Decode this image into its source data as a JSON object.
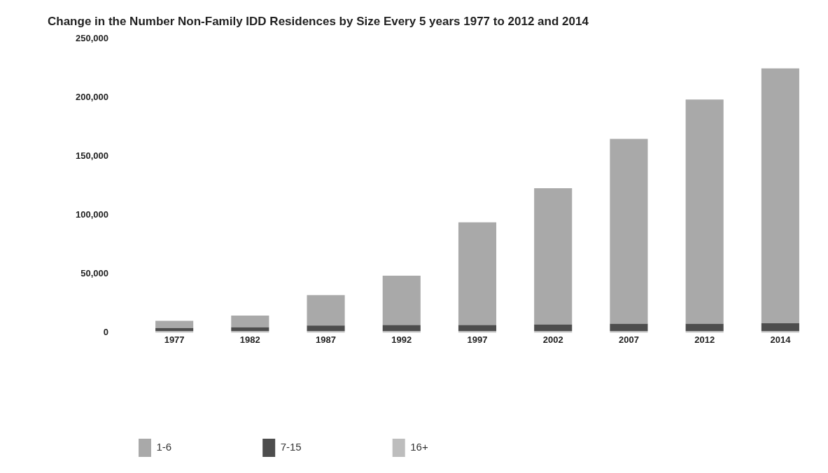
{
  "chart_data": {
    "type": "bar",
    "title": "Change in the Number Non-Family IDD Residences by Size Every 5 years 1977 to 2012 and 2014",
    "categories": [
      "1977",
      "1982",
      "1987",
      "1992",
      "1997",
      "2002",
      "2007",
      "2012",
      "2014"
    ],
    "stacked": true,
    "series": [
      {
        "name": "16+",
        "color": "#bdbdbd",
        "values": [
          1500,
          1500,
          1500,
          1500,
          1500,
          1500,
          1500,
          1500,
          1500
        ]
      },
      {
        "name": "7-15",
        "color": "#4d4d4d",
        "values": [
          2500,
          3000,
          4500,
          5000,
          5000,
          5500,
          6000,
          6000,
          6500
        ]
      },
      {
        "name": "1-6",
        "color": "#a9a9a9",
        "values": [
          6000,
          10000,
          26000,
          42000,
          87500,
          116000,
          157500,
          191000,
          217000
        ]
      }
    ],
    "ylim": [
      0,
      250000
    ],
    "yticks": [
      {
        "value": 0,
        "label": "0"
      },
      {
        "value": 50000,
        "label": "50,000"
      },
      {
        "value": 100000,
        "label": "100,000"
      },
      {
        "value": 150000,
        "label": "150,000"
      },
      {
        "value": 200000,
        "label": "200,000"
      },
      {
        "value": 250000,
        "label": "250,000"
      }
    ],
    "grid": false,
    "legend": "bottom left"
  }
}
